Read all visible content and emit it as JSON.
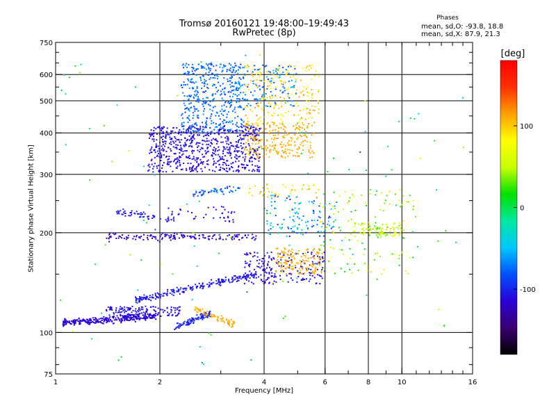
{
  "header": {
    "title_line1": "Tromsø 20160121 19:48:00–19:49:43",
    "title_line2": "RwPretec (8p)",
    "phases_title": "Phases",
    "phases_o": "mean, sd,O: -93.8, 18.8",
    "phases_x": "mean, sd,X:  87.9, 21.3"
  },
  "colorbar": {
    "unit": "[deg]",
    "ticks": [
      {
        "value": 100,
        "label": "100"
      },
      {
        "value": 0,
        "label": "0"
      },
      {
        "value": -100,
        "label": "-100"
      }
    ],
    "range": [
      -180,
      180
    ],
    "stops": [
      "#000000",
      "#3a0070",
      "#2a00d8",
      "#0050ff",
      "#00c8ff",
      "#00e8a0",
      "#00e000",
      "#c8ff00",
      "#ffff00",
      "#ffa000",
      "#ff3000",
      "#ff0000"
    ]
  },
  "chart_data": {
    "type": "scatter",
    "title": "Tromsø 20160121 19:48:00–19:49:43",
    "subtitle": "RwPretec (8p)",
    "xlabel": "Frequency [MHz]",
    "ylabel": "Stationary phase Virtual Height [km]",
    "x_scale": "log",
    "y_scale": "log",
    "xlim": [
      1,
      16
    ],
    "ylim": [
      75,
      750
    ],
    "x_ticks": [
      1,
      2,
      4,
      6,
      8,
      10,
      16
    ],
    "x_ticklabels": [
      "1",
      "2",
      "4",
      "6",
      "8",
      "10",
      "16"
    ],
    "y_ticks": [
      75,
      100,
      200,
      300,
      400,
      500,
      600,
      750
    ],
    "y_ticklabels": [
      "75",
      "100",
      "200",
      "300",
      "400",
      "500",
      "600",
      "750"
    ],
    "grid_x": [
      2,
      4,
      6,
      8,
      10
    ],
    "grid_y": [
      100,
      200,
      300,
      400,
      500,
      600
    ],
    "grid": true,
    "color_by": "phase [deg]",
    "clusters": [
      {
        "x": [
          1.05,
          1.95
        ],
        "y": [
          107,
          112
        ],
        "phase": [
          -115,
          5
        ],
        "n": 300,
        "shape": "line"
      },
      {
        "x": [
          2.2,
          2.8
        ],
        "y": [
          103,
          114
        ],
        "phase": [
          -100,
          10
        ],
        "n": 110,
        "shape": "line"
      },
      {
        "x": [
          2.5,
          3.3
        ],
        "y": [
          118,
          106
        ],
        "phase": [
          110,
          10
        ],
        "n": 70,
        "shape": "line"
      },
      {
        "x": [
          1.4,
          2.3
        ],
        "y": [
          112,
          120
        ],
        "phase": [
          -110,
          15
        ],
        "n": 140,
        "shape": "blob"
      },
      {
        "x": [
          1.7,
          3.8
        ],
        "y": [
          125,
          150
        ],
        "phase": [
          -105,
          20
        ],
        "n": 230,
        "shape": "line"
      },
      {
        "x": [
          3.5,
          6.0
        ],
        "y": [
          140,
          175
        ],
        "phase": [
          -110,
          20
        ],
        "n": 200,
        "shape": "blob"
      },
      {
        "x": [
          4.3,
          5.9
        ],
        "y": [
          150,
          180
        ],
        "phase": [
          110,
          20
        ],
        "n": 140,
        "shape": "blob"
      },
      {
        "x": [
          1.4,
          3.8
        ],
        "y": [
          194,
          194
        ],
        "phase": [
          -120,
          10
        ],
        "n": 150,
        "shape": "line"
      },
      {
        "x": [
          1.5,
          2.2
        ],
        "y": [
          232,
          218
        ],
        "phase": [
          -105,
          10
        ],
        "n": 60,
        "shape": "line"
      },
      {
        "x": [
          2.1,
          3.3
        ],
        "y": [
          215,
          240
        ],
        "phase": [
          -110,
          15
        ],
        "n": 40,
        "shape": "blob"
      },
      {
        "x": [
          2.5,
          3.4
        ],
        "y": [
          262,
          272
        ],
        "phase": [
          -80,
          40
        ],
        "n": 50,
        "shape": "line"
      },
      {
        "x": [
          3.6,
          5.8
        ],
        "y": [
          255,
          280
        ],
        "phase": [
          100,
          40
        ],
        "n": 40,
        "shape": "blob"
      },
      {
        "x": [
          4.0,
          6.5
        ],
        "y": [
          195,
          260
        ],
        "phase": [
          -60,
          70
        ],
        "n": 120,
        "shape": "blob"
      },
      {
        "x": [
          5.8,
          11.0
        ],
        "y": [
          150,
          270
        ],
        "phase": [
          40,
          70
        ],
        "n": 130,
        "shape": "blob"
      },
      {
        "x": [
          7.2,
          10.0
        ],
        "y": [
          195,
          215
        ],
        "phase": [
          60,
          50
        ],
        "n": 80,
        "shape": "blob"
      },
      {
        "x": [
          1.85,
          3.9
        ],
        "y": [
          305,
          420
        ],
        "phase": [
          -110,
          15
        ],
        "n": 700,
        "shape": "blob"
      },
      {
        "x": [
          2.3,
          3.5
        ],
        "y": [
          400,
          650
        ],
        "phase": [
          -75,
          25
        ],
        "n": 420,
        "shape": "blob"
      },
      {
        "x": [
          3.5,
          5.6
        ],
        "y": [
          335,
          430
        ],
        "phase": [
          110,
          15
        ],
        "n": 230,
        "shape": "blob"
      },
      {
        "x": [
          3.5,
          5.8
        ],
        "y": [
          420,
          640
        ],
        "phase": [
          95,
          40
        ],
        "n": 200,
        "shape": "blob"
      },
      {
        "x": [
          3.2,
          5.0
        ],
        "y": [
          480,
          640
        ],
        "phase": [
          -70,
          35
        ],
        "n": 130,
        "shape": "blob"
      },
      {
        "x": [
          1.0,
          16.0
        ],
        "y": [
          80,
          720
        ],
        "phase": [
          0,
          110
        ],
        "n": 110,
        "shape": "blob"
      }
    ]
  }
}
